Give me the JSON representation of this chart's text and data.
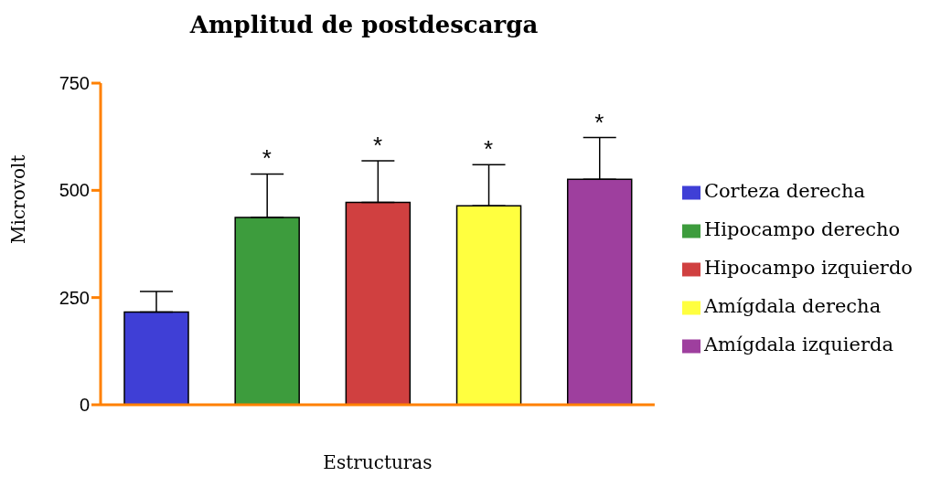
{
  "chart_data": {
    "type": "bar",
    "title": "Amplitud de postdescarga",
    "xlabel": "Estructuras",
    "ylabel": "Microvolt",
    "categories": [
      null,
      null,
      null,
      null,
      null
    ],
    "stacked": true,
    "series": [
      {
        "name": "Corteza derecha",
        "color": "#3f3fd6",
        "values": [
          216,
          null,
          null,
          null,
          null
        ],
        "errors": [
          [
            216,
            264
          ],
          null,
          null,
          null,
          null
        ]
      },
      {
        "name": "Hipocampo derecho",
        "color": "#3d9c3d",
        "values": [
          null,
          437,
          null,
          null,
          null
        ],
        "errors": [
          null,
          [
            437,
            538
          ],
          null,
          null,
          null
        ]
      },
      {
        "name": "Hipocampo izquierdo",
        "color": "#d04040",
        "values": [
          null,
          null,
          472,
          null,
          null
        ],
        "errors": [
          null,
          null,
          [
            472,
            569
          ],
          null,
          null
        ]
      },
      {
        "name": "Amígdala derecha",
        "color": "#ffff3f",
        "values": [
          null,
          null,
          null,
          464,
          null
        ],
        "errors": [
          null,
          null,
          null,
          [
            464,
            560
          ],
          null
        ]
      },
      {
        "name": "Amígdala izquierda",
        "color": "#9e3f9e",
        "values": [
          null,
          null,
          null,
          null,
          526
        ],
        "errors": [
          null,
          null,
          null,
          null,
          [
            526,
            623
          ]
        ]
      }
    ],
    "ylim": [
      0,
      750
    ],
    "yticks": [
      0,
      250,
      500,
      750
    ],
    "grid": false,
    "legend": "right",
    "tick_labels": "y",
    "annotations": [
      "*",
      "*",
      "*",
      "*"
    ]
  }
}
